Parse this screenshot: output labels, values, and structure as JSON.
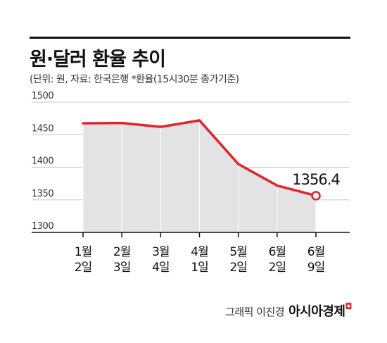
{
  "title": "원·달러 환율 추이",
  "subtitle": "(단위: 원, 자료: 한국은행 *환율(15시30분 종가기준)",
  "credit": {
    "prefix": "그래픽 이진경",
    "brand": "아시아경제",
    "brand_mark": "ㅁ"
  },
  "chart_data": {
    "type": "area",
    "x": [
      "1월 2일",
      "2월 3일",
      "3월 4일",
      "4월 1일",
      "5월 2일",
      "6월 2일",
      "6월 9일"
    ],
    "x_tick_labels": [
      [
        "1월",
        "2일"
      ],
      [
        "2월",
        "3일"
      ],
      [
        "3월",
        "4일"
      ],
      [
        "4월",
        "1일"
      ],
      [
        "5월",
        "2일"
      ],
      [
        "6월",
        "2일"
      ],
      [
        "6월",
        "9일"
      ]
    ],
    "values": [
      1467.5,
      1468,
      1462,
      1472,
      1405,
      1372,
      1356.4
    ],
    "ylim": [
      1300,
      1500
    ],
    "yticks": [
      1500,
      1450,
      1400,
      1350,
      1300
    ],
    "y_tick_labels": [
      "1500",
      "1450",
      "1400",
      "1350",
      "1300"
    ],
    "annotation": {
      "index": 6,
      "label": "1356.4"
    },
    "grid": true,
    "colors": {
      "line": "#e0242b",
      "area": "#e3e3e5",
      "grid": "#c8c8c8",
      "axis": "#111111"
    }
  }
}
